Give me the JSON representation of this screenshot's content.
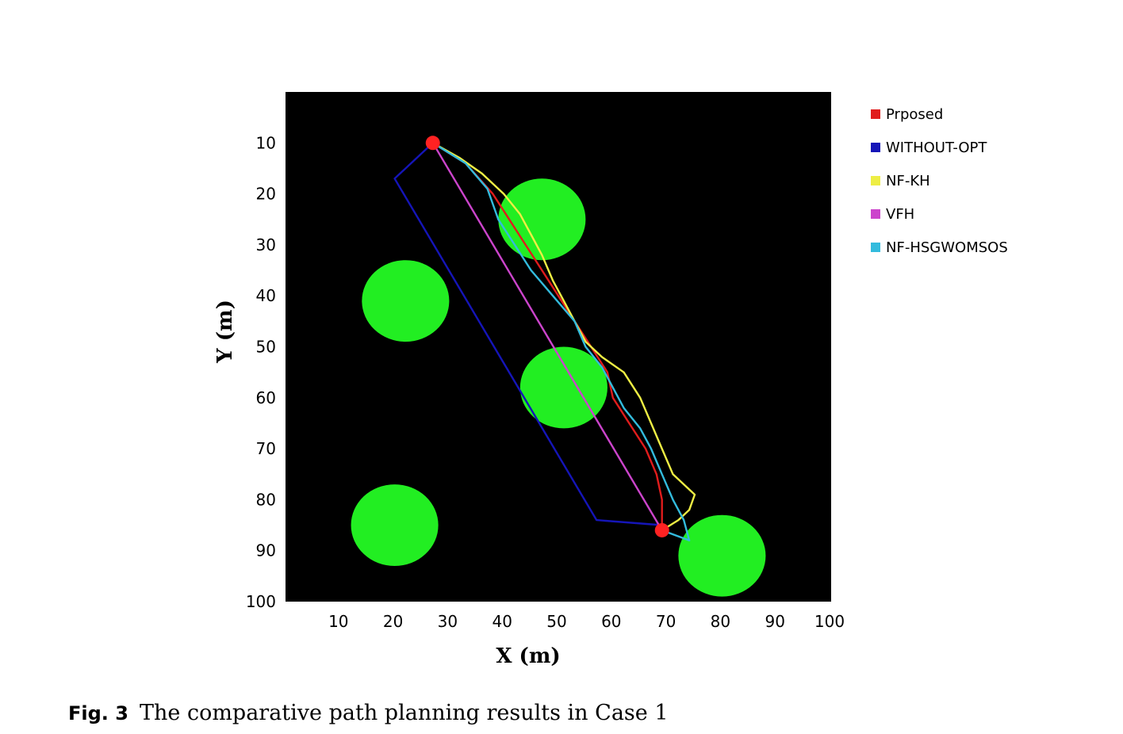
{
  "caption": {
    "label": "Fig. 3",
    "text": "The comparative path planning results in Case 1"
  },
  "chart_data": {
    "type": "line",
    "xlabel": "X (m)",
    "ylabel": "Y (m)",
    "xlim": [
      0,
      100
    ],
    "ylim": [
      0,
      100
    ],
    "y_inverted": true,
    "x_ticks": [
      10,
      20,
      30,
      40,
      50,
      60,
      70,
      80,
      90,
      100
    ],
    "y_ticks": [
      10,
      20,
      30,
      40,
      50,
      60,
      70,
      80,
      90,
      100
    ],
    "background": "#000000",
    "grid": false,
    "legend_position": "right",
    "obstacles": [
      {
        "x": 47,
        "y": 25,
        "r": 8,
        "color": "#22ee22"
      },
      {
        "x": 22,
        "y": 41,
        "r": 8,
        "color": "#22ee22"
      },
      {
        "x": 51,
        "y": 58,
        "r": 8,
        "color": "#22ee22"
      },
      {
        "x": 20,
        "y": 85,
        "r": 8,
        "color": "#22ee22"
      },
      {
        "x": 80,
        "y": 91,
        "r": 8,
        "color": "#22ee22"
      }
    ],
    "markers": [
      {
        "x": 27,
        "y": 10,
        "color": "#ff2222"
      },
      {
        "x": 69,
        "y": 86,
        "color": "#ff2222"
      }
    ],
    "series": [
      {
        "name": "Prposed",
        "color": "#e01c1c",
        "points": [
          [
            27,
            10
          ],
          [
            33,
            14
          ],
          [
            38,
            20
          ],
          [
            41,
            25
          ],
          [
            44,
            30
          ],
          [
            47,
            35
          ],
          [
            50,
            40
          ],
          [
            53,
            45
          ],
          [
            56,
            50
          ],
          [
            59,
            55
          ],
          [
            60,
            60
          ],
          [
            63,
            65
          ],
          [
            66,
            70
          ],
          [
            68,
            75
          ],
          [
            69,
            80
          ],
          [
            69,
            86
          ]
        ]
      },
      {
        "name": "WITHOUT-OPT",
        "color": "#1515b8",
        "points": [
          [
            27,
            10
          ],
          [
            20,
            17
          ],
          [
            57,
            84
          ],
          [
            69,
            85
          ]
        ]
      },
      {
        "name": "NF-KH",
        "color": "#eeee44",
        "points": [
          [
            27,
            10
          ],
          [
            32,
            13
          ],
          [
            36,
            16
          ],
          [
            40,
            20
          ],
          [
            43,
            24
          ],
          [
            45,
            28
          ],
          [
            47,
            32
          ],
          [
            49,
            37
          ],
          [
            51,
            41
          ],
          [
            53,
            45
          ],
          [
            55,
            49
          ],
          [
            58,
            52
          ],
          [
            62,
            55
          ],
          [
            65,
            60
          ],
          [
            67,
            65
          ],
          [
            69,
            70
          ],
          [
            71,
            75
          ],
          [
            75,
            79
          ],
          [
            74,
            82
          ],
          [
            72,
            84
          ],
          [
            69,
            86
          ]
        ]
      },
      {
        "name": "VFH",
        "color": "#cc44cc",
        "points": [
          [
            27,
            10
          ],
          [
            69,
            86
          ]
        ]
      },
      {
        "name": "NF-HSGWOMSOS",
        "color": "#33bbdd",
        "points": [
          [
            27,
            10
          ],
          [
            33,
            14
          ],
          [
            37,
            19
          ],
          [
            39,
            25
          ],
          [
            42,
            30
          ],
          [
            45,
            35
          ],
          [
            49,
            40
          ],
          [
            53,
            45
          ],
          [
            55,
            50
          ],
          [
            58,
            54
          ],
          [
            60,
            58
          ],
          [
            62,
            62
          ],
          [
            65,
            66
          ],
          [
            67,
            70
          ],
          [
            69,
            75
          ],
          [
            71,
            80
          ],
          [
            73,
            84
          ],
          [
            74,
            88
          ],
          [
            69,
            86
          ]
        ]
      }
    ]
  }
}
